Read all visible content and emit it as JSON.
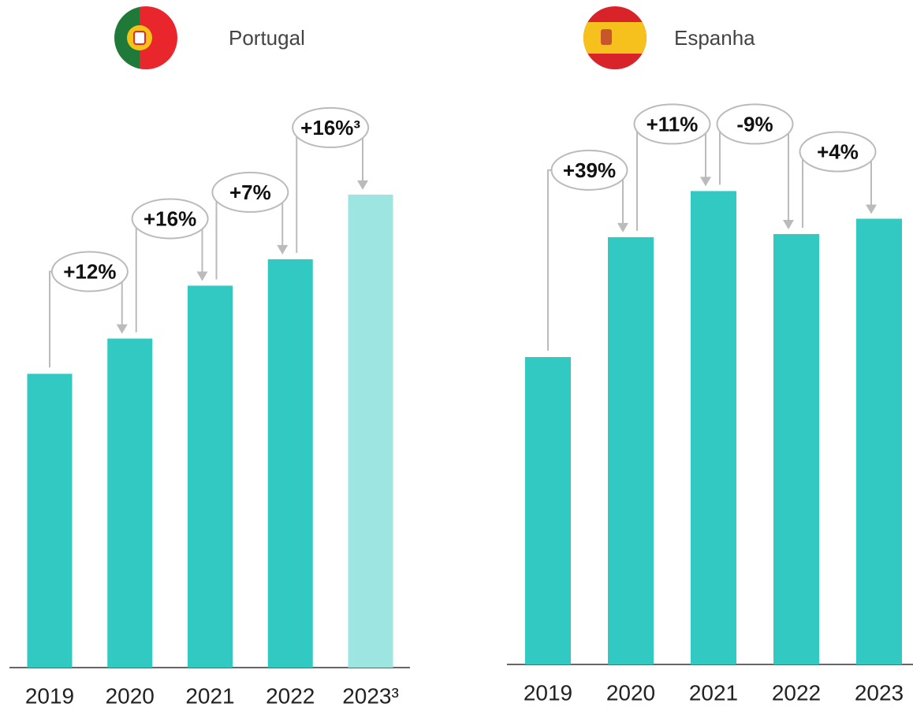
{
  "chart_data": [
    {
      "type": "bar",
      "title": "Portugal",
      "categories": [
        "2019",
        "2020",
        "2021",
        "2022",
        "2023³"
      ],
      "values": [
        100,
        112,
        130,
        139,
        161
      ],
      "colors": [
        "#33c9c3",
        "#33c9c3",
        "#33c9c3",
        "#33c9c3",
        "#9de5e1"
      ],
      "ylim": [
        0,
        220
      ],
      "annotations": [
        {
          "text": "+12%"
        },
        {
          "text": "+16%"
        },
        {
          "text": "+7%"
        },
        {
          "text": "+16%³"
        }
      ]
    },
    {
      "type": "bar",
      "title": "Espanha",
      "categories": [
        "2019",
        "2020",
        "2021",
        "2022",
        "2023"
      ],
      "values": [
        100,
        139,
        154,
        140,
        145
      ],
      "colors": [
        "#33c9c3",
        "#33c9c3",
        "#33c9c3",
        "#33c9c3",
        "#33c9c3"
      ],
      "ylim": [
        0,
        210
      ],
      "annotations": [
        {
          "text": "+39%"
        },
        {
          "text": "+11%"
        },
        {
          "text": "-9%"
        },
        {
          "text": "+4%"
        }
      ]
    }
  ]
}
